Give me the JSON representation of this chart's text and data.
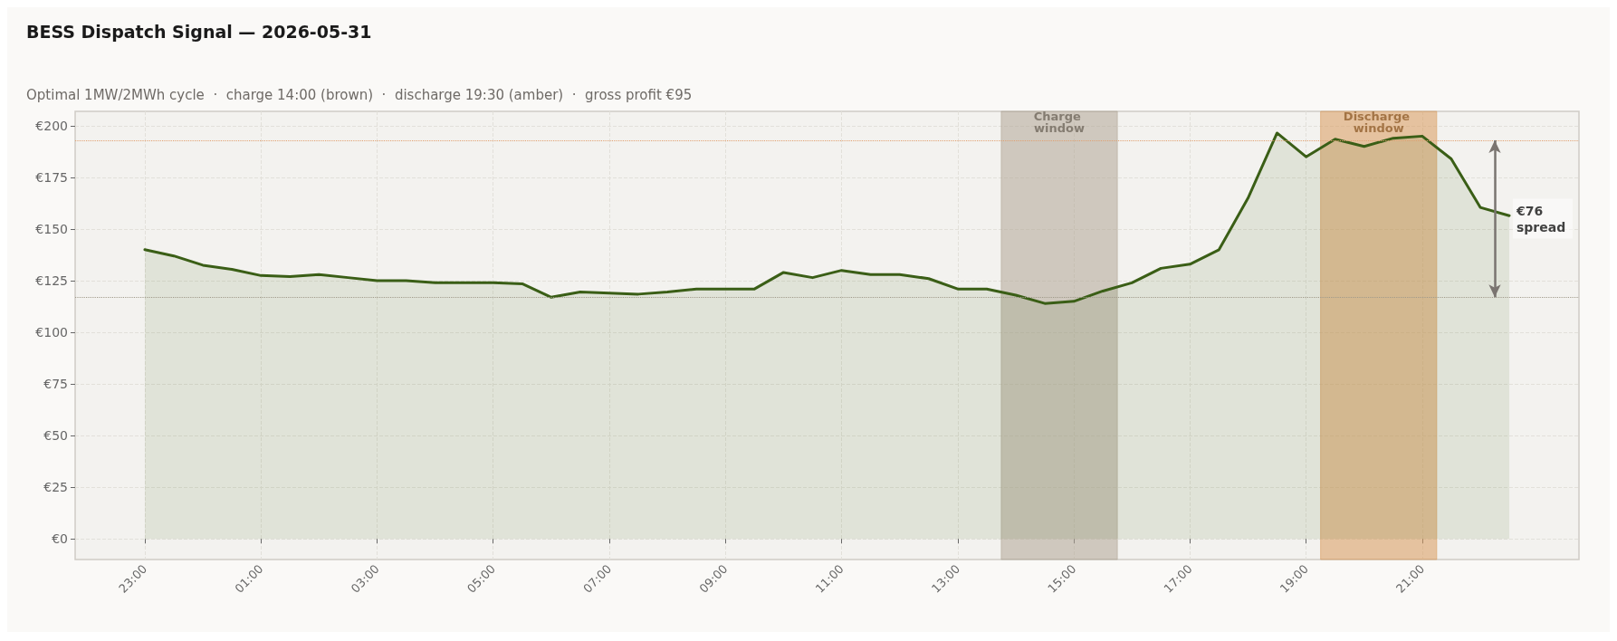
{
  "chart_data": {
    "type": "area",
    "title": "BESS Dispatch Signal — 2026-05-31",
    "subtitle": "Optimal 1MW/2MWh cycle  ·  charge 14:00 (brown)  ·  discharge 19:30 (amber)  ·  gross profit €95",
    "x": [
      "2026-05-30T23:00",
      "2026-05-30T23:30",
      "2026-05-31T00:00",
      "2026-05-31T00:30",
      "2026-05-31T01:00",
      "2026-05-31T01:30",
      "2026-05-31T02:00",
      "2026-05-31T02:30",
      "2026-05-31T03:00",
      "2026-05-31T03:30",
      "2026-05-31T04:00",
      "2026-05-31T04:30",
      "2026-05-31T05:00",
      "2026-05-31T05:30",
      "2026-05-31T06:00",
      "2026-05-31T06:30",
      "2026-05-31T07:00",
      "2026-05-31T07:30",
      "2026-05-31T08:00",
      "2026-05-31T08:30",
      "2026-05-31T09:00",
      "2026-05-31T09:30",
      "2026-05-31T10:00",
      "2026-05-31T10:30",
      "2026-05-31T11:00",
      "2026-05-31T11:30",
      "2026-05-31T12:00",
      "2026-05-31T12:30",
      "2026-05-31T13:00",
      "2026-05-31T13:30",
      "2026-05-31T14:00",
      "2026-05-31T14:30",
      "2026-05-31T15:00",
      "2026-05-31T15:30",
      "2026-05-31T16:00",
      "2026-05-31T16:30",
      "2026-05-31T17:00",
      "2026-05-31T17:30",
      "2026-05-31T18:00",
      "2026-05-31T18:30",
      "2026-05-31T19:00",
      "2026-05-31T19:30",
      "2026-05-31T20:00",
      "2026-05-31T20:30",
      "2026-05-31T21:00",
      "2026-05-31T21:30",
      "2026-05-31T22:00",
      "2026-05-31T22:30"
    ],
    "series": [
      {
        "color": "#3a5e16",
        "values": [
          140,
          137,
          132.5,
          130.5,
          127.5,
          127,
          128,
          126.5,
          125,
          125,
          124,
          124,
          124,
          123.5,
          117,
          119.5,
          119,
          118.5,
          119.5,
          121,
          121,
          121,
          129,
          126.5,
          130,
          128,
          128,
          126,
          121,
          121,
          118,
          114,
          115,
          120,
          124,
          131,
          133,
          140,
          165,
          196.5,
          185,
          193.5,
          190,
          194,
          195,
          184,
          160.5,
          156.5
        ]
      }
    ],
    "xlim": [
      "2026-05-30T21:48",
      "2026-05-31T23:42"
    ],
    "xticks": [
      {
        "value": "2026-05-30T23:00",
        "label": "23:00"
      },
      {
        "value": "2026-05-31T01:00",
        "label": "01:00"
      },
      {
        "value": "2026-05-31T03:00",
        "label": "03:00"
      },
      {
        "value": "2026-05-31T05:00",
        "label": "05:00"
      },
      {
        "value": "2026-05-31T07:00",
        "label": "07:00"
      },
      {
        "value": "2026-05-31T09:00",
        "label": "09:00"
      },
      {
        "value": "2026-05-31T11:00",
        "label": "11:00"
      },
      {
        "value": "2026-05-31T13:00",
        "label": "13:00"
      },
      {
        "value": "2026-05-31T15:00",
        "label": "15:00"
      },
      {
        "value": "2026-05-31T17:00",
        "label": "17:00"
      },
      {
        "value": "2026-05-31T19:00",
        "label": "19:00"
      },
      {
        "value": "2026-05-31T21:00",
        "label": "21:00"
      }
    ],
    "ylim": [
      -10,
      207
    ],
    "yticks": [
      {
        "value": 0,
        "label": "€0"
      },
      {
        "value": 25,
        "label": "€25"
      },
      {
        "value": 50,
        "label": "€50"
      },
      {
        "value": 75,
        "label": "€75"
      },
      {
        "value": 100,
        "label": "€100"
      },
      {
        "value": 125,
        "label": "€125"
      },
      {
        "value": 150,
        "label": "€150"
      },
      {
        "value": 175,
        "label": "€175"
      },
      {
        "value": 200,
        "label": "€200"
      }
    ],
    "bands": [
      {
        "axis": "x",
        "from": "2026-05-31T13:45",
        "to": "2026-05-31T15:45",
        "label": "Charge window",
        "color": "#b0a596"
      },
      {
        "axis": "x",
        "from": "2026-05-31T19:15",
        "to": "2026-05-31T21:15",
        "label": "Discharge window",
        "color": "#d99a5c"
      }
    ],
    "ref_lines": [
      {
        "axis": "y",
        "value": 193,
        "color": "#e0a070",
        "line_style": "dotted"
      },
      {
        "axis": "y",
        "value": 117,
        "color": "#a09a8a",
        "line_style": "dotted"
      }
    ],
    "annotations": [
      "€76 spread"
    ],
    "grid": true,
    "marker": "none",
    "line_style": "solid"
  }
}
